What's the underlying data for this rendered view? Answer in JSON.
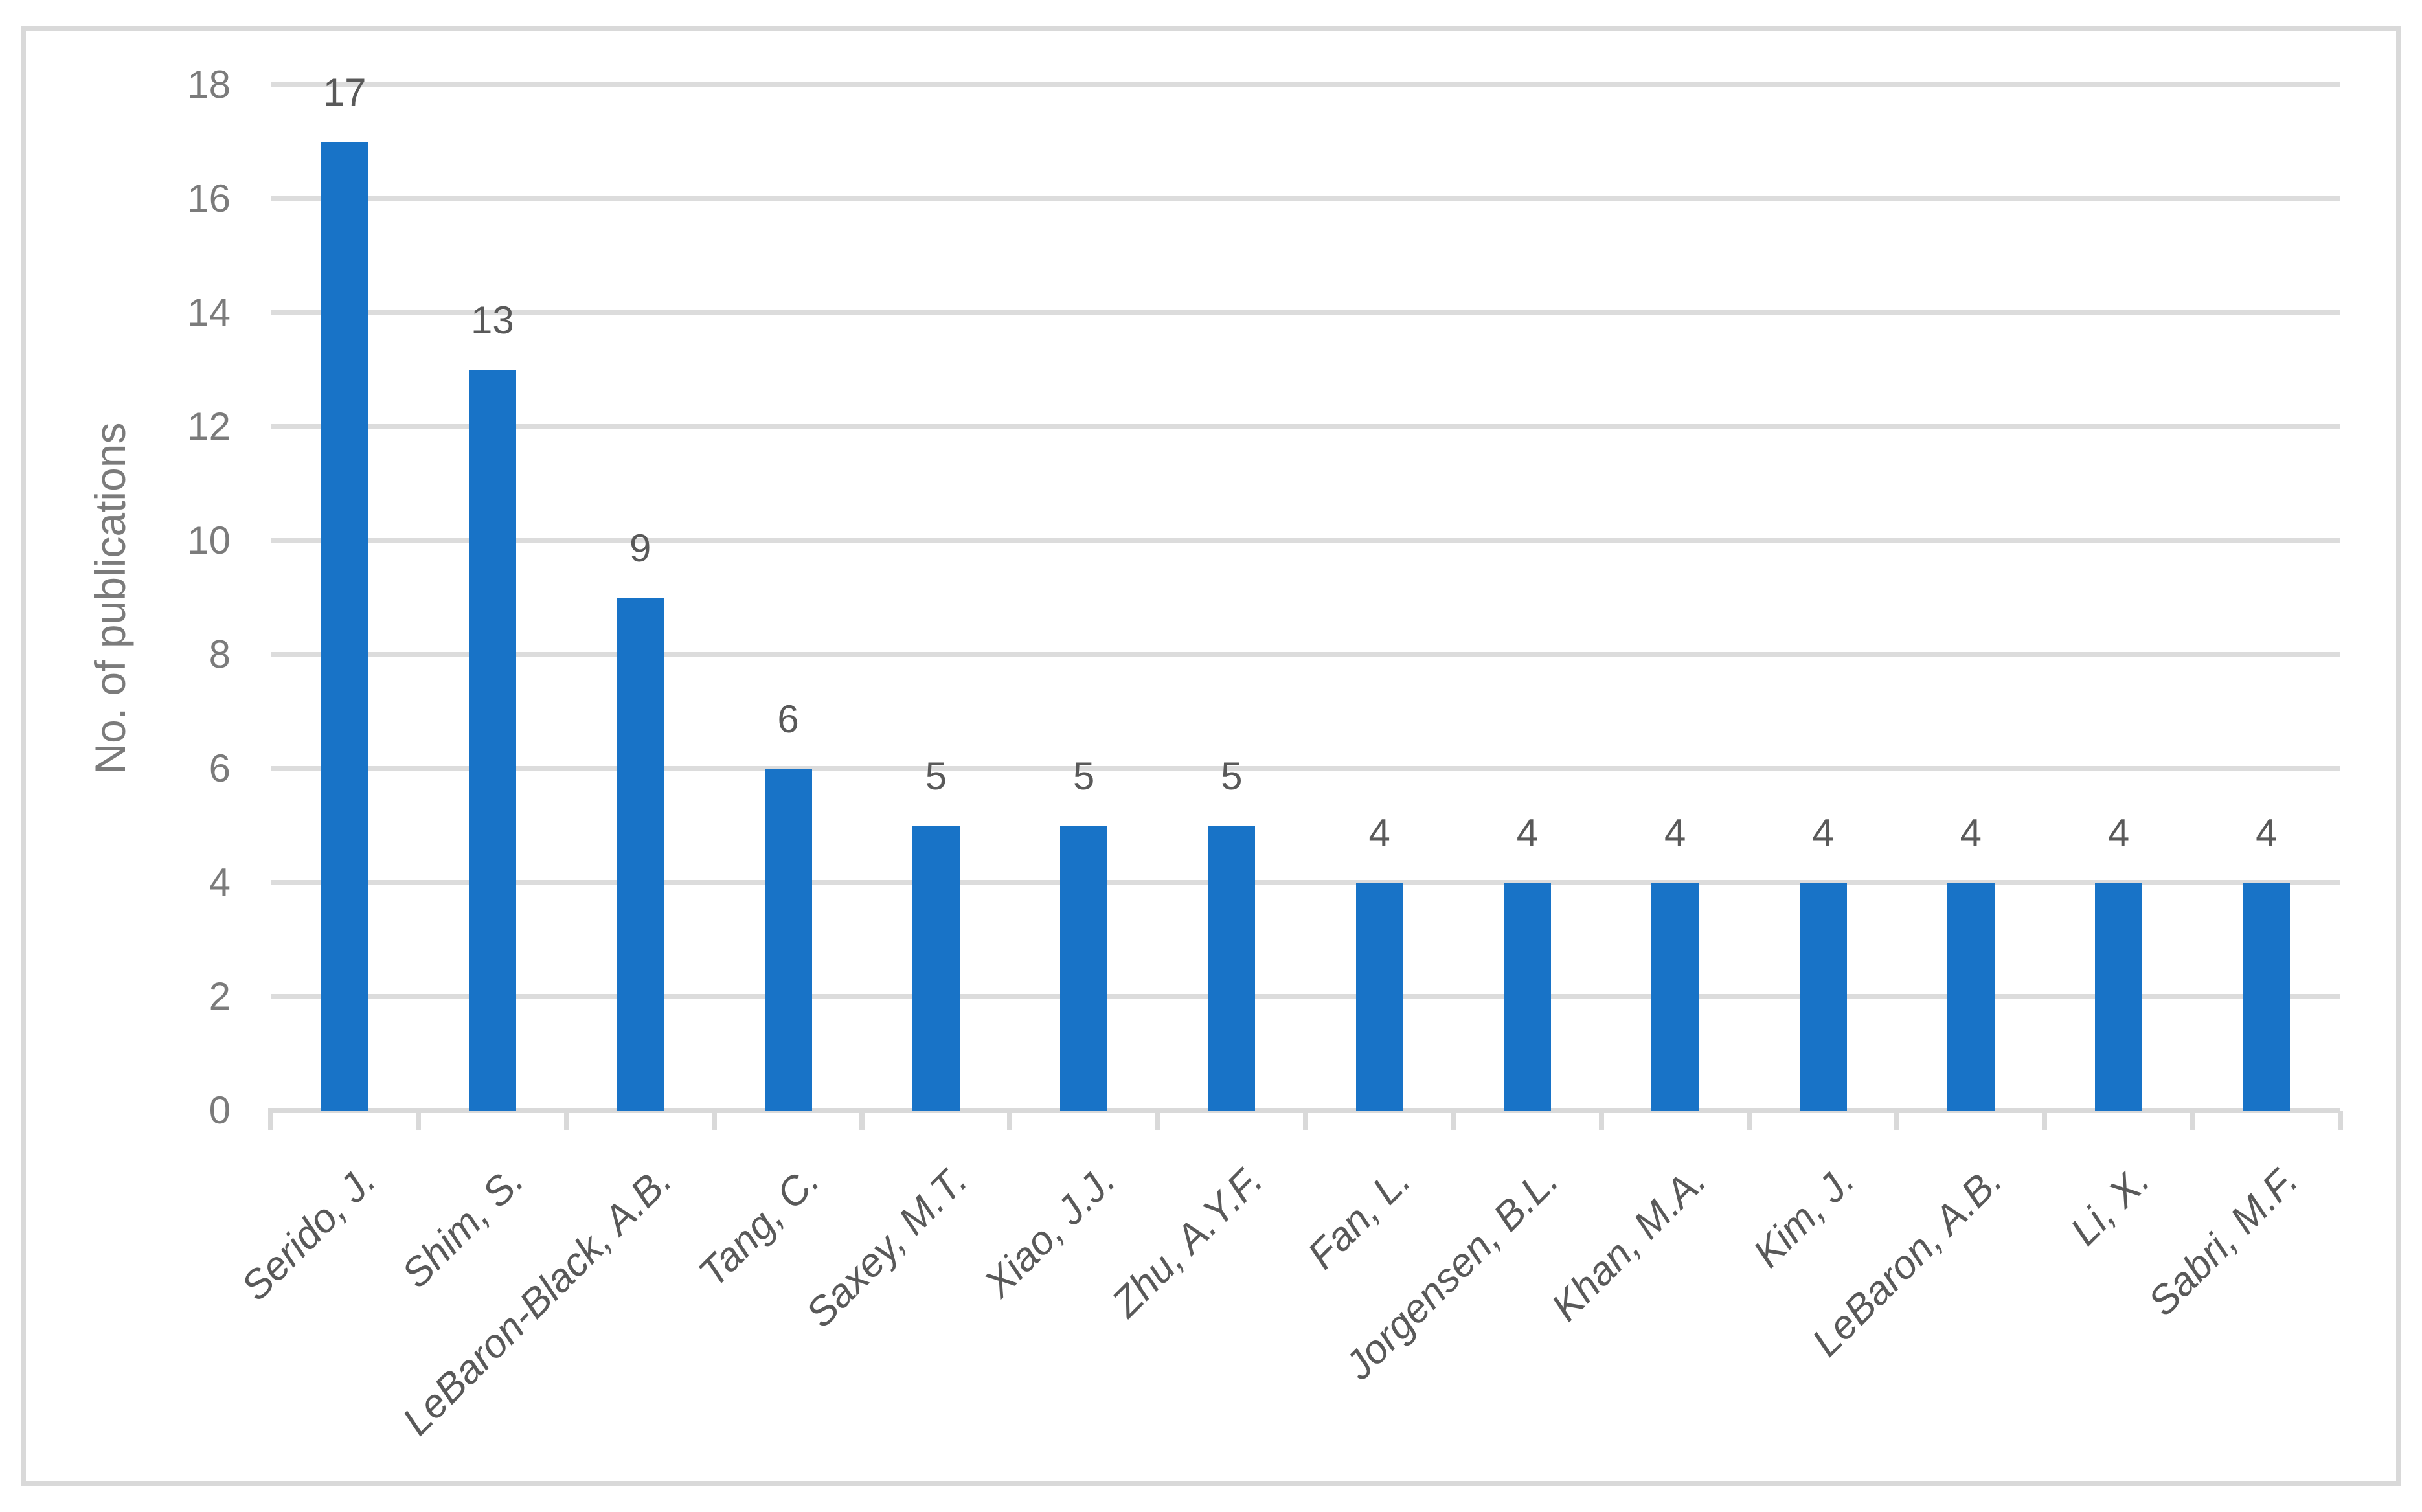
{
  "chart_data": {
    "type": "bar",
    "title": "",
    "xlabel": "",
    "ylabel": "No. of publications",
    "categories": [
      "Serido, J.",
      "Shim, S.",
      "LeBaron-Black, A.B.",
      "Tang, C.",
      "Saxey, M.T.",
      "Xiao, J.J.",
      "Zhu, A.Y.F.",
      "Fan, L.",
      "Jorgensen, B.L.",
      "Khan, M.A.",
      "Kim, J.",
      "LeBaron, A.B.",
      "Li, X.",
      "Sabri, M.F."
    ],
    "values": [
      17,
      13,
      9,
      6,
      5,
      5,
      5,
      4,
      4,
      4,
      4,
      4,
      4,
      4
    ],
    "data_labels": [
      "17",
      "13",
      "9",
      "6",
      "5",
      "5",
      "5",
      "4",
      "4",
      "4",
      "4",
      "4",
      "4",
      "4"
    ],
    "yticks": [
      "0",
      "2",
      "4",
      "6",
      "8",
      "10",
      "12",
      "14",
      "16",
      "18"
    ],
    "ylim": [
      0,
      18
    ],
    "ytick_step": 2,
    "grid": "horizontal",
    "legend": "none",
    "x_label_rotation_deg": 45,
    "x_label_style": "italic"
  },
  "colors": {
    "bar": "#1873c7",
    "gridline": "#dcdcdc",
    "axis_line": "#d9d9d9",
    "frame_border": "#d9d9d9",
    "data_label_text": "#595959",
    "x_label_text": "#595959",
    "y_tick_text": "#7b7b7b",
    "y_title_text": "#7b7b7b",
    "background": "#ffffff"
  }
}
